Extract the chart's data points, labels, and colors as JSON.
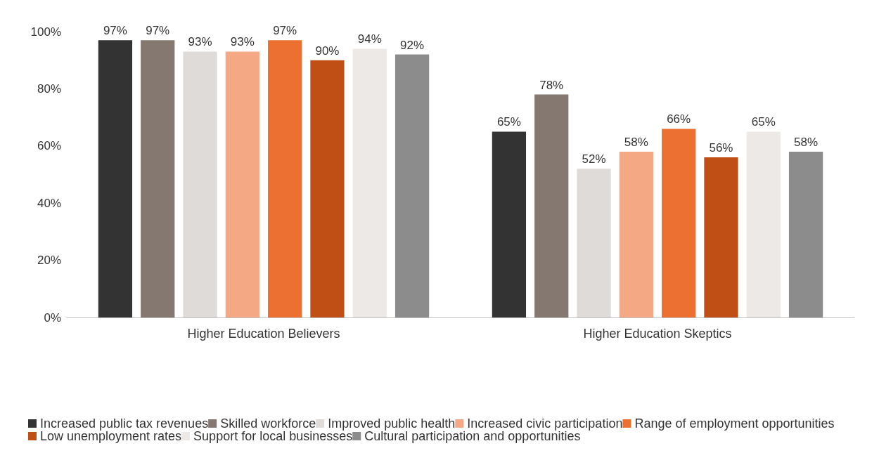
{
  "chart_data": {
    "type": "bar",
    "categories": [
      "Higher Education Believers",
      "Higher Education Skeptics"
    ],
    "ylim": [
      0,
      100
    ],
    "yticks": [
      {
        "value": 0,
        "label": "0%"
      },
      {
        "value": 20,
        "label": "20%"
      },
      {
        "value": 40,
        "label": "40%"
      },
      {
        "value": 60,
        "label": "60%"
      },
      {
        "value": 80,
        "label": "80%"
      },
      {
        "value": 100,
        "label": "100%"
      }
    ],
    "grid": false,
    "legend": "bottom",
    "series": [
      {
        "name": "Increased public tax revenues",
        "color": "#333333",
        "values": [
          97,
          65
        ],
        "value_labels": [
          "97%",
          "65%"
        ]
      },
      {
        "name": "Skilled workforce",
        "color": "#857870",
        "values": [
          97,
          78
        ],
        "value_labels": [
          "97%",
          "78%"
        ]
      },
      {
        "name": "Improved public health",
        "color": "#dfdbd9",
        "values": [
          93,
          52
        ],
        "value_labels": [
          "93%",
          "52%"
        ]
      },
      {
        "name": "Increased civic participation",
        "color": "#f4a984",
        "values": [
          93,
          58
        ],
        "value_labels": [
          "93%",
          "58%"
        ]
      },
      {
        "name": "Range of employment opportunities",
        "color": "#ec7130",
        "values": [
          97,
          66
        ],
        "value_labels": [
          "97%",
          "66%"
        ]
      },
      {
        "name": "Low unemployment rates",
        "color": "#c04f15",
        "values": [
          90,
          56
        ],
        "value_labels": [
          "90%",
          "56%"
        ]
      },
      {
        "name": "Support for local businesses",
        "color": "#ece9e7",
        "values": [
          94,
          65
        ],
        "value_labels": [
          "94%",
          "65%"
        ]
      },
      {
        "name": "Cultural participation and opportunities",
        "color": "#8c8c8c",
        "values": [
          92,
          58
        ],
        "value_labels": [
          "92%",
          "58%"
        ]
      }
    ]
  }
}
